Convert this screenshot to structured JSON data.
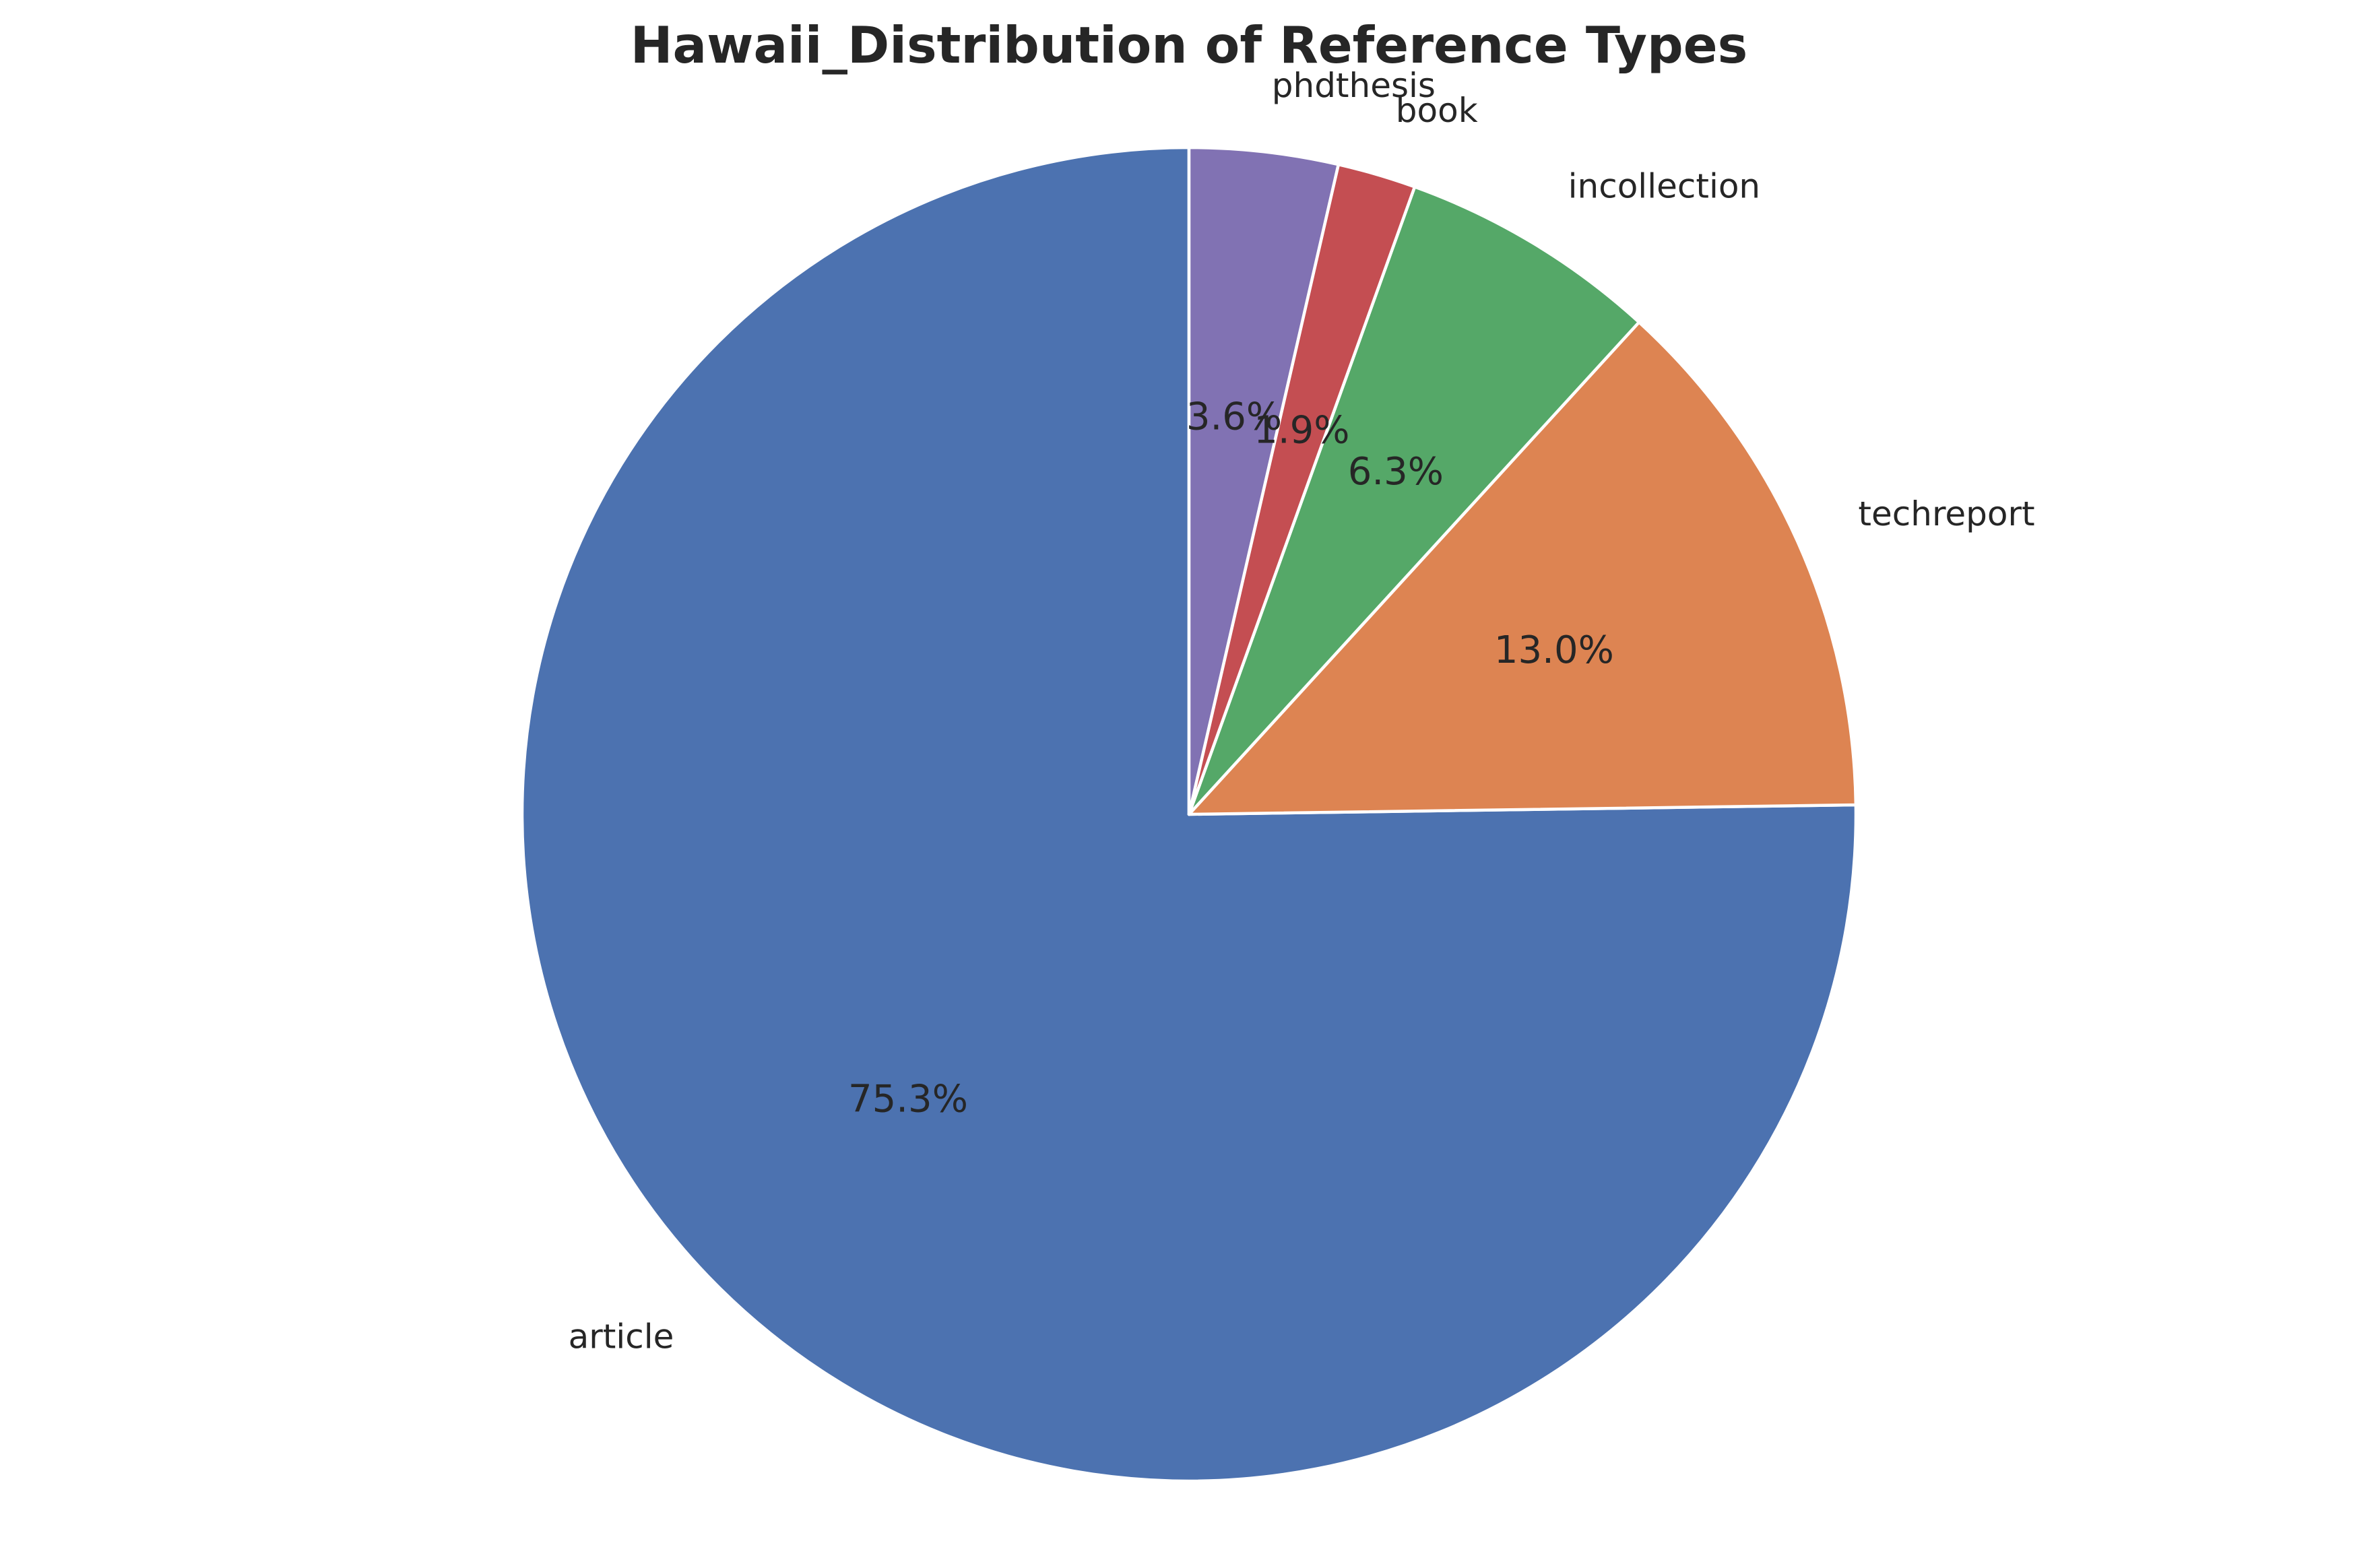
{
  "chart_data": {
    "type": "pie",
    "title": "Hawaii_Distribution of Reference Types",
    "start_angle_deg": 90,
    "direction": "counterclockwise",
    "slices": [
      {
        "label": "article",
        "value": 75.3,
        "pct_label": "75.3%",
        "color": "#4c72b0"
      },
      {
        "label": "techreport",
        "value": 13.0,
        "pct_label": "13.0%",
        "color": "#dd8452"
      },
      {
        "label": "incollection",
        "value": 6.3,
        "pct_label": "6.3%",
        "color": "#55a868"
      },
      {
        "label": "book",
        "value": 1.9,
        "pct_label": "1.9%",
        "color": "#c44e52"
      },
      {
        "label": "phdthesis",
        "value": 3.6,
        "pct_label": "3.6%",
        "color": "#8172b3"
      }
    ],
    "legend": "none"
  }
}
